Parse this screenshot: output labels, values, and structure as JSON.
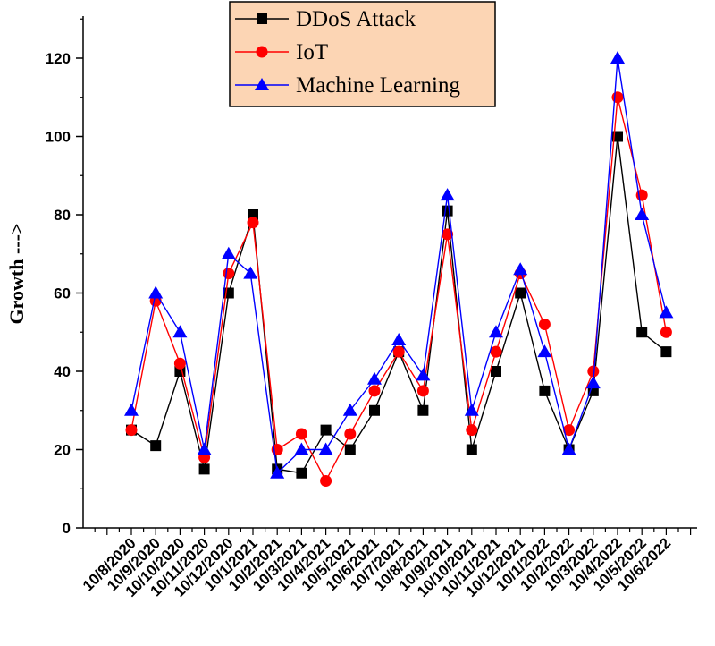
{
  "chart_data": {
    "type": "line",
    "ylabel": "Growth --->",
    "ylim": [
      0,
      130
    ],
    "yticks": [
      0,
      20,
      40,
      60,
      80,
      100,
      120
    ],
    "categories": [
      "10/8/2020",
      "10/9/2020",
      "10/10/2020",
      "10/11/2020",
      "10/12/2020",
      "10/1/2021",
      "10/2/2021",
      "10/3/2021",
      "10/4/2021",
      "10/5/2021",
      "10/6/2021",
      "10/7/2021",
      "10/8/2021",
      "10/9/2021",
      "10/10/2021",
      "10/11/2021",
      "10/12/2021",
      "10/1/2022",
      "10/2/2022",
      "10/3/2022",
      "10/4/2022",
      "10/5/2022",
      "10/6/2022"
    ],
    "series": [
      {
        "name": "DDoS Attack",
        "color": "#000000",
        "marker": "square",
        "points": [
          [
            0,
            25
          ],
          [
            1,
            21
          ],
          [
            2,
            40
          ],
          [
            3,
            15
          ],
          [
            4,
            60
          ],
          [
            5,
            80
          ],
          [
            6,
            15
          ],
          [
            7,
            14
          ],
          [
            8,
            25
          ],
          [
            9,
            20
          ],
          [
            10,
            30
          ],
          [
            11,
            45
          ],
          [
            12,
            30
          ],
          [
            13,
            81
          ],
          [
            14,
            20
          ],
          [
            15,
            40
          ],
          [
            16,
            60
          ],
          [
            17,
            35
          ],
          [
            18,
            20
          ],
          [
            19,
            35
          ],
          [
            20,
            100
          ],
          [
            21,
            50
          ],
          [
            22,
            45
          ]
        ]
      },
      {
        "name": "IoT",
        "color": "#ff0000",
        "marker": "circle",
        "points": [
          [
            0,
            25
          ],
          [
            1,
            58
          ],
          [
            2,
            42
          ],
          [
            3,
            18
          ],
          [
            4,
            65
          ],
          [
            5,
            78
          ],
          [
            6,
            20
          ],
          [
            7,
            24
          ],
          [
            8,
            12
          ],
          [
            9,
            24
          ],
          [
            10,
            35
          ],
          [
            11,
            45
          ],
          [
            12,
            35
          ],
          [
            13,
            75
          ],
          [
            14,
            25
          ],
          [
            15,
            45
          ],
          [
            16,
            65
          ],
          [
            17,
            52
          ],
          [
            18,
            25
          ],
          [
            19,
            40
          ],
          [
            20,
            110
          ],
          [
            21,
            85
          ],
          [
            22,
            50
          ]
        ]
      },
      {
        "name": "Machine Learning",
        "color": "#0000ff",
        "marker": "triangle",
        "points": [
          [
            0,
            30
          ],
          [
            1,
            60
          ],
          [
            2,
            50
          ],
          [
            3,
            20
          ],
          [
            4,
            70
          ],
          [
            4.9,
            65
          ],
          [
            6,
            14
          ],
          [
            7,
            20
          ],
          [
            8,
            20
          ],
          [
            9,
            30
          ],
          [
            10,
            38
          ],
          [
            11,
            48
          ],
          [
            12,
            39
          ],
          [
            13,
            85
          ],
          [
            14,
            30
          ],
          [
            15,
            50
          ],
          [
            16,
            66
          ],
          [
            17,
            45
          ],
          [
            18,
            20
          ],
          [
            19,
            37
          ],
          [
            20,
            120
          ],
          [
            21,
            80
          ],
          [
            22,
            55
          ]
        ]
      }
    ],
    "legend_position": "top-center",
    "legend_bg": "#fcd5b4",
    "grid": false
  }
}
